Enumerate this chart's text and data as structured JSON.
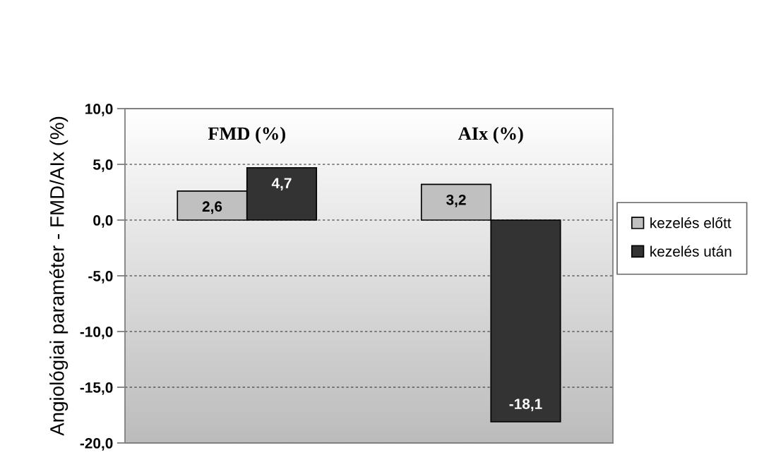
{
  "chart_data": {
    "type": "bar",
    "categories": [
      "FMD (%)",
      "AIx (%)"
    ],
    "ylabel": "Angiológiai paraméter - FMD/AIx (%)",
    "series": [
      {
        "name": "kezelés előtt",
        "color": "#c0c0c0",
        "values": [
          2.6,
          3.2
        ],
        "value_labels": [
          "2,6",
          "3,2"
        ]
      },
      {
        "name": "kezelés után",
        "color": "#333333",
        "values": [
          4.7,
          -18.1
        ],
        "value_labels": [
          "4,7",
          "-18,1"
        ]
      }
    ],
    "ylim": [
      -20,
      10
    ],
    "yticks": [
      {
        "value": -20,
        "label": "-20,0"
      },
      {
        "value": -15,
        "label": "-15,0"
      },
      {
        "value": -10,
        "label": "-10,0"
      },
      {
        "value": -5,
        "label": "-5,0"
      },
      {
        "value": 0,
        "label": "0,0"
      },
      {
        "value": 5,
        "label": "5,0"
      },
      {
        "value": 10,
        "label": "10,0"
      }
    ],
    "grid": "y",
    "legend": "right"
  }
}
